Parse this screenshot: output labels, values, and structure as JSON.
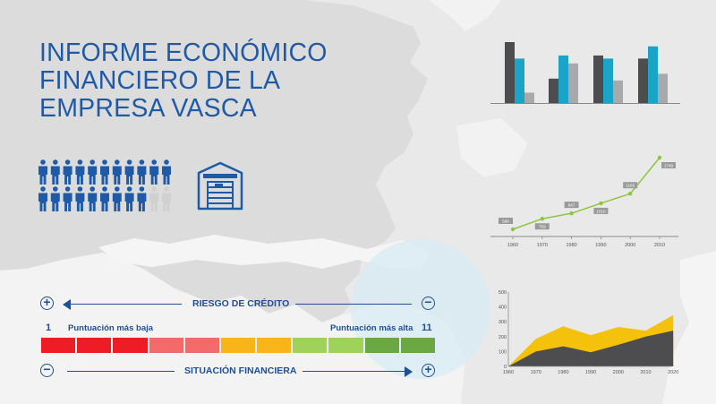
{
  "title": {
    "lines": [
      "INFORME ECONÓMICO",
      "FINANCIERO DE LA",
      "EMPRESA VASCA"
    ]
  },
  "icons": {
    "people": "people-group-icon",
    "warehouse": "warehouse-icon",
    "plus": "+",
    "minus": "−"
  },
  "people_indicator": {
    "filled": 20,
    "total": 22
  },
  "colors": {
    "brand_blue": "#1f5aa8",
    "dark_gray": "#4d4d4f",
    "teal": "#1aa5c8",
    "light_gray": "#a7a9ac",
    "green_line": "#8cc63f",
    "yellow": "#f4c20d"
  },
  "scale": {
    "top_label": "RIESGO DE CRÉDITO",
    "bottom_label": "SITUACIÓN FINANCIERA",
    "min_number": "1",
    "max_number": "11",
    "min_label": "Puntuación más baja",
    "max_label": "Puntuación más alta",
    "segment_colors": [
      "#ee1c24",
      "#ee1c24",
      "#ee1c24",
      "#f26a6a",
      "#f26a6a",
      "#f7b518",
      "#f7b518",
      "#9fd25a",
      "#9fd25a",
      "#6aa844",
      "#6aa844"
    ]
  },
  "chart_data": [
    {
      "type": "bar",
      "categories": [
        "",
        "",
        "",
        ""
      ],
      "series": [
        {
          "values": [
            100,
            40,
            78,
            73
          ]
        },
        {
          "values": [
            73,
            78,
            73,
            93
          ]
        },
        {
          "values": [
            17,
            65,
            37,
            48
          ]
        }
      ],
      "ylim": [
        0,
        100
      ]
    },
    {
      "type": "line",
      "x": [
        1960,
        1970,
        1980,
        1990,
        2000,
        2010
      ],
      "y": [
        588,
        759,
        847,
        1010,
        1165,
        1749
      ],
      "data_labels": [
        "588",
        "759",
        "847",
        "1010",
        "1165",
        "1749"
      ],
      "xticks": [
        "1960",
        "1970",
        "1980",
        "1990",
        "2000",
        "2010"
      ]
    },
    {
      "type": "area",
      "x": [
        1960,
        1970,
        1980,
        1990,
        2000,
        2010,
        2020
      ],
      "xticks": [
        "1960",
        "1970",
        "1980",
        "1990",
        "2000",
        "2010",
        "2020"
      ],
      "yticks": [
        "500",
        "400",
        "300",
        "200",
        "100",
        "0"
      ],
      "ylim": [
        0,
        500
      ],
      "series": [
        {
          "values": [
            0,
            100,
            135,
            95,
            145,
            200,
            240
          ]
        },
        {
          "values": [
            0,
            185,
            270,
            210,
            265,
            240,
            345
          ]
        }
      ]
    }
  ]
}
